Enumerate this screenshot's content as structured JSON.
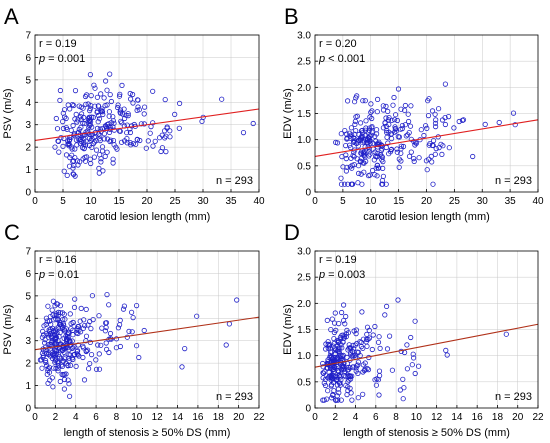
{
  "chart_data": [
    {
      "panel": "A",
      "type": "scatter",
      "xlabel": "carotid lesion length (mm)",
      "ylabel": "PSV (m/s)",
      "xlim": [
        0,
        40
      ],
      "ylim": [
        0,
        7
      ],
      "xticks": [
        "0",
        "5",
        "10",
        "15",
        "20",
        "25",
        "30",
        "35",
        "40"
      ],
      "yticks": [
        "0",
        "1",
        "2",
        "3",
        "4",
        "5",
        "6",
        "7"
      ],
      "r_text": "r = 0.19",
      "p_italic": "p",
      "p_rest": " = 0.001",
      "n_text": "n = 293",
      "fit": [
        [
          0,
          2.3
        ],
        [
          40,
          3.7
        ]
      ],
      "fit_color": "#e02020",
      "grid": true,
      "seed": 11,
      "n_points": 293,
      "x_mode": "lesion",
      "y_mode": "psv",
      "slope": 0.035,
      "intercept": 2.3
    },
    {
      "panel": "B",
      "type": "scatter",
      "xlabel": "carotid lesion length (mm)",
      "ylabel": "EDV (m/s)",
      "xlim": [
        0,
        40
      ],
      "ylim": [
        0,
        3
      ],
      "xticks": [
        "0",
        "5",
        "10",
        "15",
        "20",
        "25",
        "30",
        "35",
        "40"
      ],
      "yticks": [
        "0",
        "0.5",
        "1.0",
        "1.5",
        "2.0",
        "2.5",
        "3.0"
      ],
      "r_text": "r = 0.20",
      "p_italic": "p",
      "p_rest": " < 0.001",
      "n_text": "n = 293",
      "fit": [
        [
          0,
          0.68
        ],
        [
          40,
          1.38
        ]
      ],
      "fit_color": "#e02020",
      "grid": true,
      "seed": 23,
      "n_points": 293,
      "x_mode": "lesion",
      "y_mode": "edv",
      "slope": 0.0175,
      "intercept": 0.68
    },
    {
      "panel": "C",
      "type": "scatter",
      "xlabel": "length of stenosis ≥ 50% DS (mm)",
      "ylabel": "PSV (m/s)",
      "xlim": [
        0,
        22
      ],
      "ylim": [
        0,
        7
      ],
      "xticks": [
        "0",
        "2",
        "4",
        "6",
        "8",
        "10",
        "12",
        "14",
        "16",
        "18",
        "20",
        "22"
      ],
      "yticks": [
        "0",
        "1",
        "2",
        "3",
        "4",
        "5",
        "6",
        "7"
      ],
      "r_text": "r = 0.16",
      "p_italic": "p",
      "p_rest": " = 0.01",
      "n_text": "n = 293",
      "fit": [
        [
          0,
          2.6
        ],
        [
          22,
          4.05
        ]
      ],
      "fit_color": "#b03018",
      "grid": true,
      "seed": 37,
      "n_points": 293,
      "x_mode": "stenosis",
      "y_mode": "psv",
      "slope": 0.066,
      "intercept": 2.6
    },
    {
      "panel": "D",
      "type": "scatter",
      "xlabel": "length of stenosis ≥ 50% DS (mm)",
      "ylabel": "EDV (m/s)",
      "xlim": [
        0,
        22
      ],
      "ylim": [
        0,
        3
      ],
      "xticks": [
        "0",
        "2",
        "4",
        "6",
        "8",
        "10",
        "12",
        "14",
        "16",
        "18",
        "20",
        "22"
      ],
      "yticks": [
        "0",
        "0.5",
        "1.0",
        "1.5",
        "2.0",
        "2.5",
        "3.0"
      ],
      "r_text": "r = 0.19",
      "p_italic": "p",
      "p_rest": " = 0.003",
      "n_text": "n = 293",
      "fit": [
        [
          0,
          0.78
        ],
        [
          22,
          1.6
        ]
      ],
      "fit_color": "#b03018",
      "grid": true,
      "seed": 53,
      "n_points": 293,
      "x_mode": "stenosis",
      "y_mode": "edv",
      "slope": 0.037,
      "intercept": 0.78
    }
  ]
}
